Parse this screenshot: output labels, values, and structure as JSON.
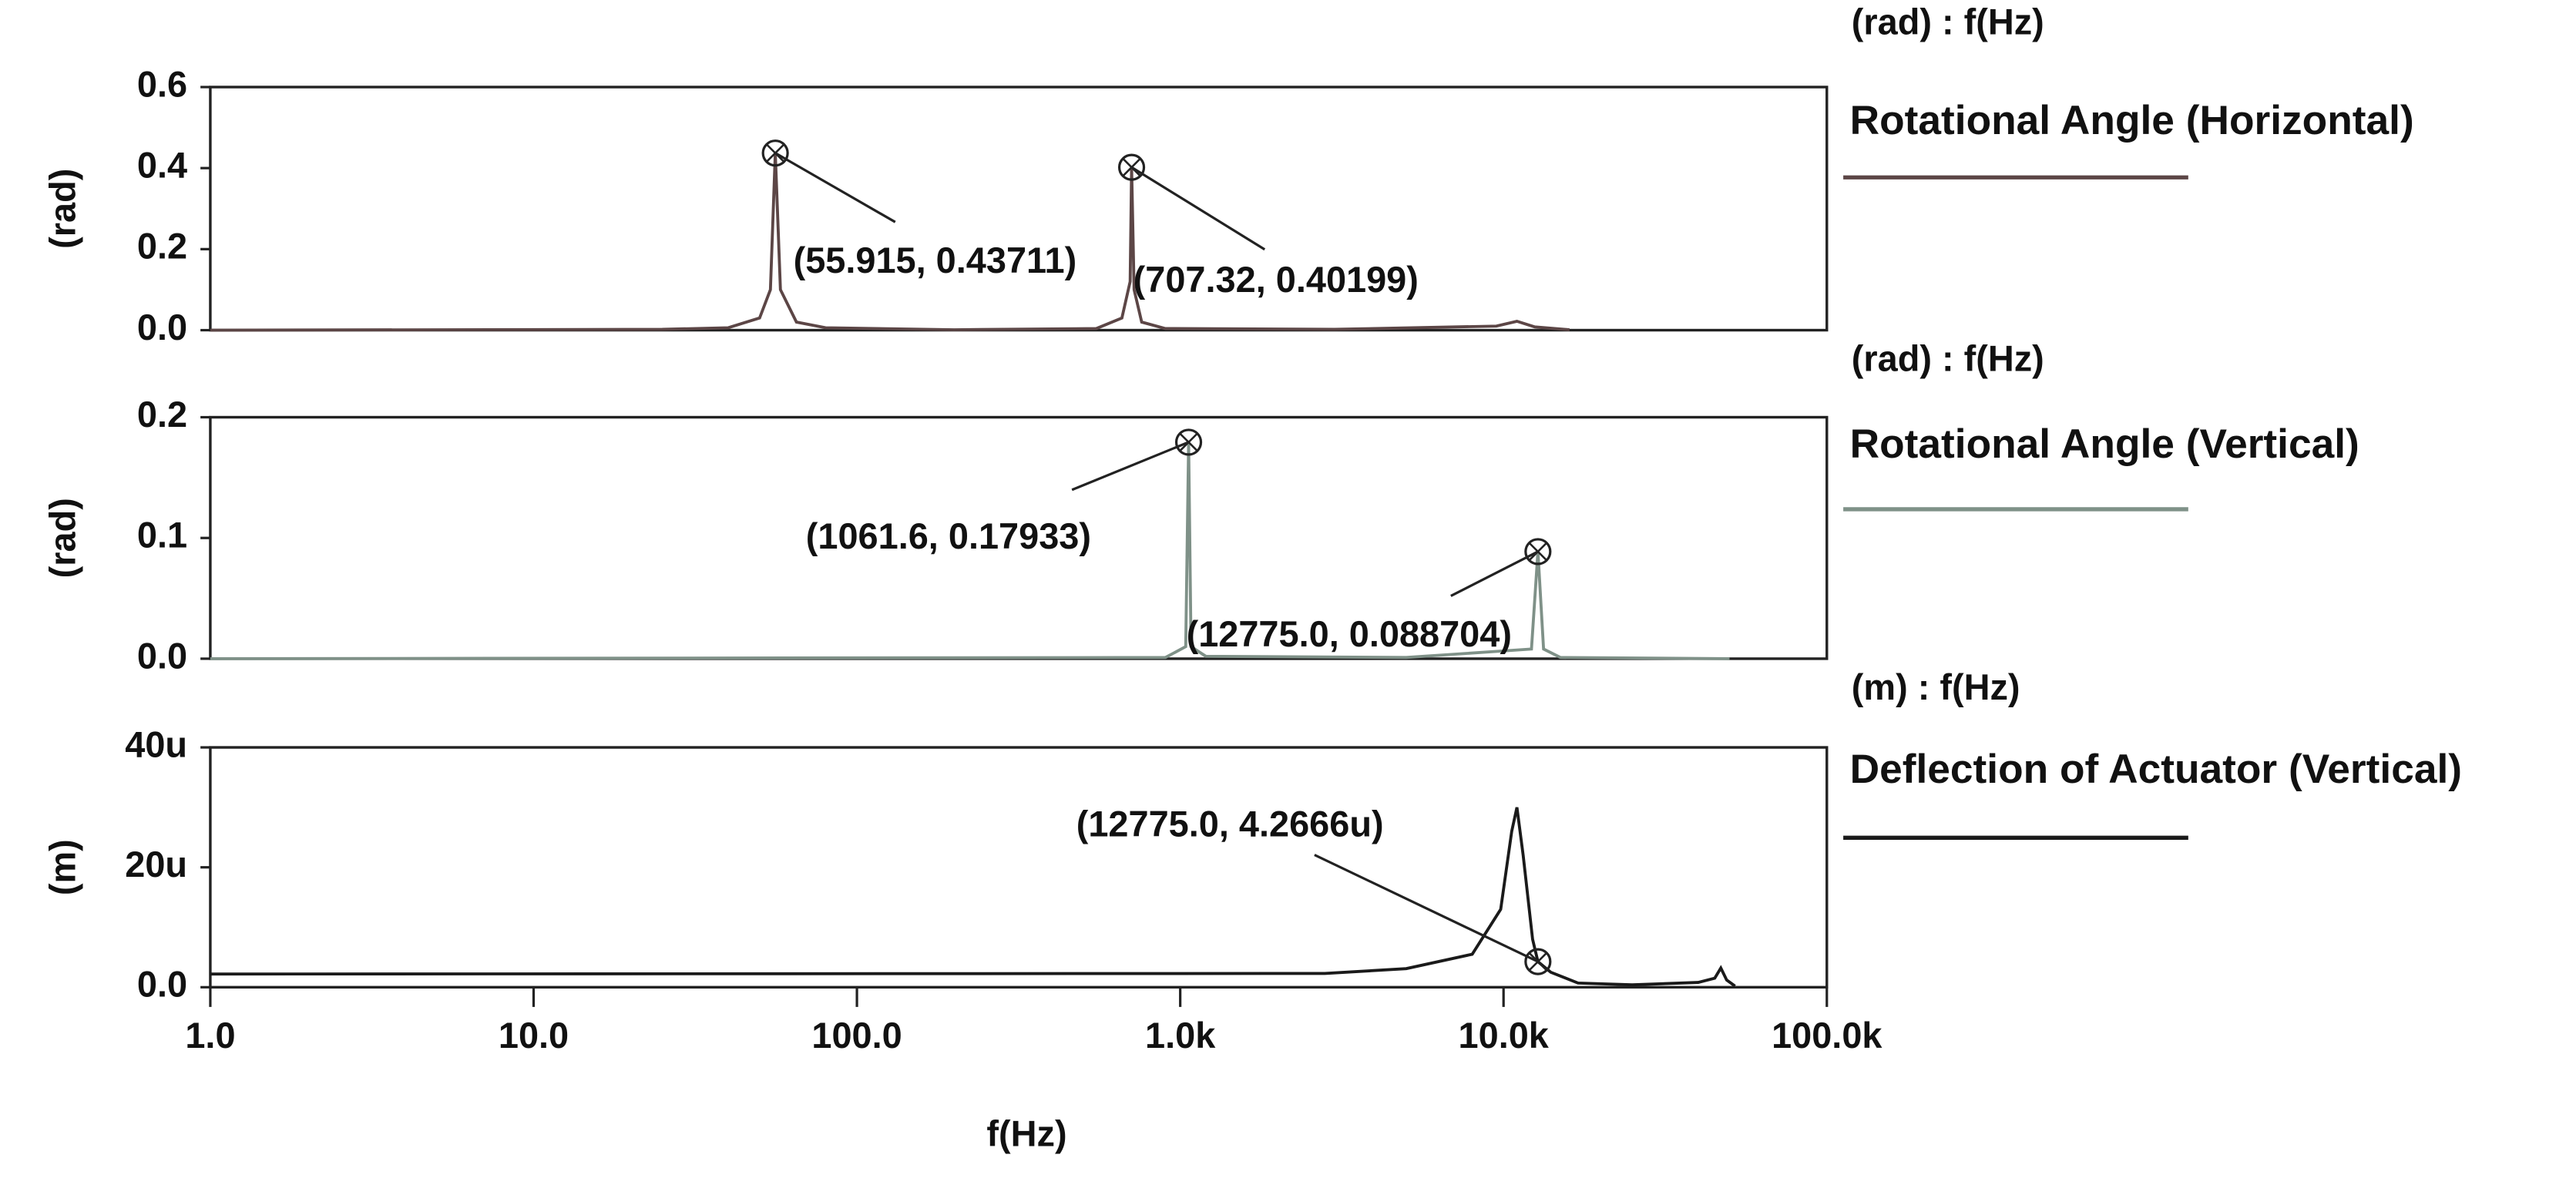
{
  "chart_data": [
    {
      "type": "line",
      "unit_label": "(rad) : f(Hz)",
      "ylabel": "(rad)",
      "log_x": true,
      "xlim": [
        1,
        100000
      ],
      "ylim": [
        0,
        0.6
      ],
      "yticks": [
        {
          "value": 0,
          "label": "0.0"
        },
        {
          "value": 0.2,
          "label": "0.2"
        },
        {
          "value": 0.4,
          "label": "0.4"
        },
        {
          "value": 0.6,
          "label": "0.6"
        }
      ],
      "series": [
        {
          "name": "Rotational Angle (Horizontal)",
          "color": "#5c4646",
          "x": [
            1,
            25,
            40,
            50,
            54,
            55.915,
            58,
            65,
            80,
            200,
            550,
            660,
            700,
            707.32,
            720,
            760,
            900,
            3000,
            9500,
            11000,
            12500,
            16000
          ],
          "values": [
            0,
            0.002,
            0.006,
            0.03,
            0.1,
            0.43711,
            0.1,
            0.02,
            0.006,
            0.001,
            0.004,
            0.03,
            0.12,
            0.40199,
            0.1,
            0.02,
            0.004,
            0.002,
            0.01,
            0.022,
            0.008,
            0.001
          ]
        }
      ],
      "annotations": [
        {
          "text": "(55.915, 0.43711)",
          "x": 55.915,
          "y": 0.43711
        },
        {
          "text": "(707.32, 0.40199)",
          "x": 707.32,
          "y": 0.40199
        }
      ]
    },
    {
      "type": "line",
      "unit_label": "(rad) : f(Hz)",
      "ylabel": "(rad)",
      "log_x": true,
      "xlim": [
        1,
        100000
      ],
      "ylim": [
        0,
        0.2
      ],
      "yticks": [
        {
          "value": 0,
          "label": "0.0"
        },
        {
          "value": 0.1,
          "label": "0.1"
        },
        {
          "value": 0.2,
          "label": "0.2"
        }
      ],
      "series": [
        {
          "name": "Rotational Angle (Vertical)",
          "color": "#7f9188",
          "x": [
            1,
            900,
            1040,
            1061.6,
            1080,
            1200,
            5000,
            12200,
            12775,
            13300,
            15000,
            50000
          ],
          "values": [
            0,
            0.001,
            0.01,
            0.17933,
            0.01,
            0.002,
            0.001,
            0.008,
            0.088704,
            0.008,
            0.001,
            0
          ]
        }
      ],
      "annotations": [
        {
          "text": "(1061.6, 0.17933)",
          "x": 1061.6,
          "y": 0.17933
        },
        {
          "text": "(12775.0, 0.088704)",
          "x": 12775,
          "y": 0.088704
        }
      ]
    },
    {
      "type": "line",
      "unit_label": "(m) : f(Hz)",
      "ylabel": "(m)",
      "log_x": true,
      "xlim": [
        1,
        100000
      ],
      "ylim": [
        0,
        4e-05
      ],
      "yticks": [
        {
          "value": 0,
          "label": "0.0"
        },
        {
          "value": 2e-05,
          "label": "20u"
        },
        {
          "value": 4e-05,
          "label": "40u"
        }
      ],
      "xticks": [
        {
          "value": 1,
          "label": "1.0"
        },
        {
          "value": 10,
          "label": "10.0"
        },
        {
          "value": 100,
          "label": "100.0"
        },
        {
          "value": 1000,
          "label": "1.0k"
        },
        {
          "value": 10000,
          "label": "10.0k"
        },
        {
          "value": 100000,
          "label": "100.0k"
        }
      ],
      "xlabel": "f(Hz)",
      "series": [
        {
          "name": "Deflection of Actuator (Vertical)",
          "color": "#1a1a1a",
          "x": [
            1,
            2800,
            5000,
            8000,
            9800,
            10600,
            11000,
            11500,
            12300,
            12775,
            14000,
            17000,
            25000,
            40000,
            45000,
            47000,
            49000,
            52000
          ],
          "values": [
            2.2e-06,
            2.3e-06,
            3.1e-06,
            5.5e-06,
            1.3e-05,
            2.6e-05,
            3e-05,
            2.2e-05,
            8e-06,
            4.2666e-06,
            2.5e-06,
            7e-07,
            4e-07,
            8e-07,
            1.5e-06,
            3.2e-06,
            1.2e-06,
            2e-07
          ]
        }
      ],
      "annotations": [
        {
          "text": "(12775.0, 4.2666u)",
          "x": 12775,
          "y": 4.2666e-06
        }
      ]
    }
  ]
}
